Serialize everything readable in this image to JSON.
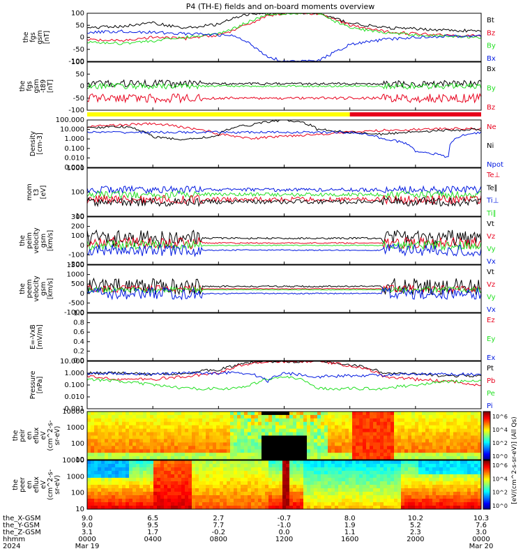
{
  "title": "P4 (TH-E) fields and on-board moments overview",
  "colors": {
    "black": "#000000",
    "red": "#e8001c",
    "green": "#22e022",
    "blue": "#0018e0",
    "yellow": "#ffff00"
  },
  "colorbar_label": "[eV/(cm^2-s-sr-eV)] (All Qs)",
  "colorbar_ticks": [
    "10^6",
    "10^4",
    "10^2",
    "10^0",
    "10^6",
    "10^4",
    "10^2",
    "10^0"
  ],
  "panels": [
    {
      "id": "fgs-gsm",
      "ylabel": [
        "the",
        "fgs",
        "gsm",
        "[nT]"
      ],
      "yticks": [
        "100",
        "50",
        "0",
        "-50",
        "-100"
      ],
      "legend": [
        {
          "text": "Bt",
          "color": "black"
        },
        {
          "text": "Bz",
          "color": "red"
        },
        {
          "text": "By",
          "color": "green"
        },
        {
          "text": "Bx",
          "color": "blue"
        }
      ]
    },
    {
      "id": "fgs-gsm-minus-t89",
      "ylabel": [
        "the",
        "fgs",
        "gsm",
        "-t89",
        "[nT]"
      ],
      "yticks": [
        "100",
        "50",
        "0",
        "-50",
        "-100"
      ],
      "legend": [
        {
          "text": "Bx",
          "color": "black"
        },
        {
          "text": "By",
          "color": "green"
        },
        {
          "text": "Bz",
          "color": "red"
        }
      ]
    },
    {
      "id": "density",
      "ylabel": [
        "Density",
        "[cm-3]"
      ],
      "yticks": [
        "100.000",
        "10.000",
        "1.000",
        "0.100",
        "0.010",
        "0.001"
      ],
      "legend": [
        {
          "text": "Ne",
          "color": "red"
        },
        {
          "text": "Ni",
          "color": "black"
        },
        {
          "text": "Npot",
          "color": "blue"
        }
      ]
    },
    {
      "id": "temperature",
      "ylabel": [
        "mom",
        "t3",
        "[eV]"
      ],
      "yticks": [
        "1000",
        "100",
        "10"
      ],
      "legend": [
        {
          "text": "Te⊥",
          "color": "red"
        },
        {
          "text": "Te∥",
          "color": "black"
        },
        {
          "text": "Ti⊥",
          "color": "blue"
        },
        {
          "text": "Ti∥",
          "color": "green"
        }
      ]
    },
    {
      "id": "peim-velocity",
      "ylabel": [
        "the",
        "peim",
        "velocity",
        "gsm",
        "[km/s]"
      ],
      "yticks": [
        "300",
        "200",
        "100",
        "0",
        "-100",
        "-200"
      ],
      "legend": [
        {
          "text": "Vt",
          "color": "black"
        },
        {
          "text": "Vz",
          "color": "red"
        },
        {
          "text": "Vy",
          "color": "green"
        },
        {
          "text": "Vx",
          "color": "blue"
        }
      ]
    },
    {
      "id": "peem-velocity",
      "ylabel": [
        "the",
        "peem",
        "velocity",
        "gsm",
        "[km/s]"
      ],
      "yticks": [
        "1500",
        "1000",
        "500",
        "0",
        "-500",
        "-1000"
      ],
      "legend": [
        {
          "text": "Vt",
          "color": "black"
        },
        {
          "text": "Vz",
          "color": "red"
        },
        {
          "text": "Vy",
          "color": "green"
        },
        {
          "text": "Vx",
          "color": "blue"
        }
      ]
    },
    {
      "id": "e-field",
      "ylabel": [
        "E=-VxB",
        "[mV/m]"
      ],
      "yticks": [
        "1.0",
        "0.8",
        "0.6",
        "0.4",
        "0.2",
        "0.0"
      ],
      "legend": [
        {
          "text": "Ez",
          "color": "red"
        },
        {
          "text": "Ey",
          "color": "green"
        },
        {
          "text": "Ex",
          "color": "blue"
        }
      ]
    },
    {
      "id": "pressure",
      "ylabel": [
        "Pressure",
        "[nPa]"
      ],
      "yticks": [
        "10.000",
        "1.000",
        "0.100",
        "0.010",
        "0.001"
      ],
      "legend": [
        {
          "text": "Pt",
          "color": "black"
        },
        {
          "text": "Pb",
          "color": "red"
        },
        {
          "text": "Pe",
          "color": "green"
        },
        {
          "text": "Pi",
          "color": "blue"
        }
      ]
    },
    {
      "id": "peir-en-eflux",
      "ylabel": [
        "the",
        "peir",
        "en",
        "eflux",
        "eV",
        "(cm^2-s-",
        "sr-eV)"
      ],
      "yticks": [
        "10000",
        "1000",
        "100",
        "10"
      ],
      "legend": []
    },
    {
      "id": "peer-en-eflux",
      "ylabel": [
        "the",
        "peer",
        "en",
        "eflux",
        "eV",
        "(cm^2-s-",
        "sr-eV)"
      ],
      "yticks": [
        "10000",
        "1000",
        "100",
        "10"
      ],
      "legend": []
    }
  ],
  "footer": {
    "row_labels": [
      "the_X-GSM",
      "the_Y-GSM",
      "the_Z-GSM",
      "hhmm",
      "2024"
    ],
    "columns": [
      {
        "x": "9.0",
        "y": "9.0",
        "z": "3.1",
        "hhmm": "0000",
        "date": "Mar 19"
      },
      {
        "x": "6.5",
        "y": "9.5",
        "z": "1.7",
        "hhmm": "0400",
        "date": ""
      },
      {
        "x": "2.7",
        "y": "7.7",
        "z": "-0.2",
        "hhmm": "0800",
        "date": ""
      },
      {
        "x": "-0.7",
        "y": "-1.0",
        "z": "0.0",
        "hhmm": "1200",
        "date": ""
      },
      {
        "x": "8.0",
        "y": "1.9",
        "z": "1.1",
        "hhmm": "1600",
        "date": ""
      },
      {
        "x": "10.2",
        "y": "5.2",
        "z": "2.3",
        "hhmm": "2000",
        "date": ""
      },
      {
        "x": "10.3",
        "y": "7.6",
        "z": "3.0",
        "hhmm": "0000",
        "date": "Mar 20"
      }
    ]
  },
  "chart_data": {
    "type": "line",
    "title": "P4 (TH-E) fields and on-board moments overview",
    "x_hours": [
      0,
      4,
      8,
      12,
      16,
      20,
      24
    ],
    "x_tick_labels": [
      "0000",
      "0400",
      "0800",
      "1200",
      "1600",
      "2000",
      "0000"
    ],
    "series": [
      {
        "name": "Bt",
        "panel": "fgs-gsm",
        "color": "black",
        "x": [
          0,
          2,
          4,
          6,
          8,
          9,
          10,
          11,
          12,
          14,
          16,
          18,
          20,
          22,
          24
        ],
        "values": [
          40,
          45,
          60,
          38,
          55,
          80,
          100,
          100,
          100,
          100,
          60,
          40,
          35,
          30,
          25
        ]
      },
      {
        "name": "Bz",
        "panel": "fgs-gsm",
        "color": "red",
        "x": [
          0,
          2,
          4,
          6,
          8,
          9,
          10,
          11,
          12,
          14,
          16,
          18,
          20,
          22,
          24
        ],
        "values": [
          -10,
          -15,
          0,
          -5,
          10,
          30,
          60,
          90,
          100,
          100,
          50,
          25,
          15,
          10,
          5
        ]
      },
      {
        "name": "By",
        "panel": "fgs-gsm",
        "color": "green",
        "x": [
          0,
          2,
          4,
          6,
          8,
          9,
          10,
          11,
          12,
          14,
          16,
          18,
          20,
          22,
          24
        ],
        "values": [
          -20,
          -25,
          -15,
          0,
          15,
          40,
          70,
          95,
          100,
          100,
          40,
          20,
          10,
          5,
          0
        ]
      },
      {
        "name": "Bx",
        "panel": "fgs-gsm",
        "color": "blue",
        "x": [
          0,
          2,
          4,
          6,
          8,
          9,
          10,
          11,
          12,
          14,
          16,
          18,
          20,
          22,
          24
        ],
        "values": [
          20,
          25,
          20,
          15,
          10,
          5,
          -30,
          -80,
          -100,
          -100,
          -30,
          -10,
          0,
          5,
          5
        ]
      },
      {
        "name": "Ne",
        "panel": "density",
        "color": "red",
        "x": [
          0,
          2,
          4,
          6,
          8,
          10,
          12,
          14,
          16,
          18,
          20,
          22,
          24
        ],
        "values": [
          20,
          30,
          40,
          15,
          3,
          1,
          2,
          3,
          5,
          8,
          10,
          12,
          12
        ]
      },
      {
        "name": "Ni",
        "panel": "density",
        "color": "black",
        "x": [
          0,
          2,
          4,
          6,
          8,
          10,
          12,
          14,
          16,
          18,
          20,
          22,
          24
        ],
        "values": [
          15,
          20,
          1.5,
          0.8,
          2,
          30,
          100,
          10,
          5,
          3,
          6,
          8,
          10
        ]
      },
      {
        "name": "Npot",
        "panel": "density",
        "color": "blue",
        "x": [
          0,
          2,
          4,
          6,
          8,
          10,
          12,
          14,
          16,
          18,
          20,
          22,
          24
        ],
        "values": [
          5,
          5,
          5,
          5,
          5,
          5,
          5,
          5,
          5,
          1,
          0.05,
          0.01,
          5
        ]
      },
      {
        "name": "Pt",
        "panel": "pressure",
        "color": "black",
        "x": [
          0,
          2,
          4,
          6,
          8,
          9,
          10,
          11,
          12,
          14,
          16,
          18,
          20,
          22,
          24
        ],
        "values": [
          1,
          1,
          0.8,
          1,
          2,
          4,
          8,
          10,
          10,
          10,
          5,
          1,
          0.8,
          0.6,
          0.6
        ]
      },
      {
        "name": "Pb",
        "panel": "pressure",
        "color": "red",
        "x": [
          0,
          2,
          4,
          6,
          8,
          9,
          10,
          11,
          12,
          14,
          16,
          18,
          20,
          22,
          24
        ],
        "values": [
          0.5,
          0.3,
          0.3,
          0.5,
          1,
          3,
          7,
          10,
          10,
          10,
          4,
          0.5,
          0.3,
          0.2,
          0.1
        ]
      },
      {
        "name": "Pe",
        "panel": "pressure",
        "color": "green",
        "x": [
          0,
          2,
          4,
          6,
          8,
          9,
          10,
          11,
          12,
          14,
          16,
          18,
          20,
          22,
          24
        ],
        "values": [
          0.3,
          0.2,
          0.1,
          0.05,
          0.05,
          0.05,
          0.1,
          0.3,
          0.5,
          0.05,
          0.05,
          0.05,
          0.1,
          0.2,
          0.2
        ]
      },
      {
        "name": "Pi",
        "panel": "pressure",
        "color": "blue",
        "x": [
          0,
          2,
          4,
          6,
          8,
          9,
          10,
          11,
          12,
          14,
          16,
          18,
          20,
          22,
          24
        ],
        "values": [
          1,
          1,
          0.8,
          1,
          1,
          1.2,
          0.8,
          0.2,
          1,
          0.5,
          0.6,
          0.7,
          0.8,
          0.8,
          0.8
        ]
      }
    ]
  }
}
